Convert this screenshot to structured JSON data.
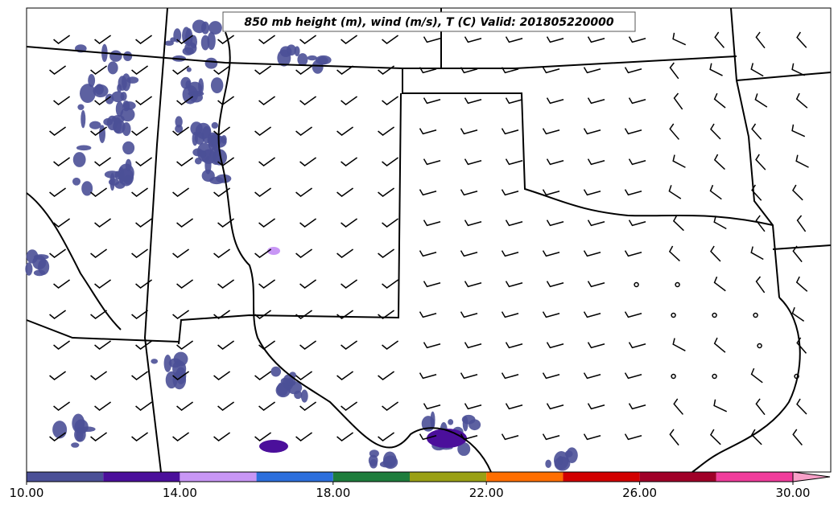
{
  "title": "850 mb height (m), wind (m/s), T (C) Valid: 201805220000",
  "colorbar": {
    "bins": [
      10,
      12,
      14,
      16,
      18,
      20,
      22,
      24,
      26,
      28,
      30
    ],
    "colors": [
      "#4b5097",
      "#4b0f9b",
      "#c896f5",
      "#2d6fdc",
      "#1e7d3c",
      "#9aa014",
      "#ff6e00",
      "#d20000",
      "#a00028",
      "#f03c9b"
    ],
    "extend_color": "#f8a0c8",
    "ticks": [
      {
        "value": 10,
        "label": "10.00"
      },
      {
        "value": 14,
        "label": "14.00"
      },
      {
        "value": 18,
        "label": "18.00"
      },
      {
        "value": 22,
        "label": "22.00"
      },
      {
        "value": 26,
        "label": "26.00"
      },
      {
        "value": 30,
        "label": "30.00"
      }
    ]
  }
}
